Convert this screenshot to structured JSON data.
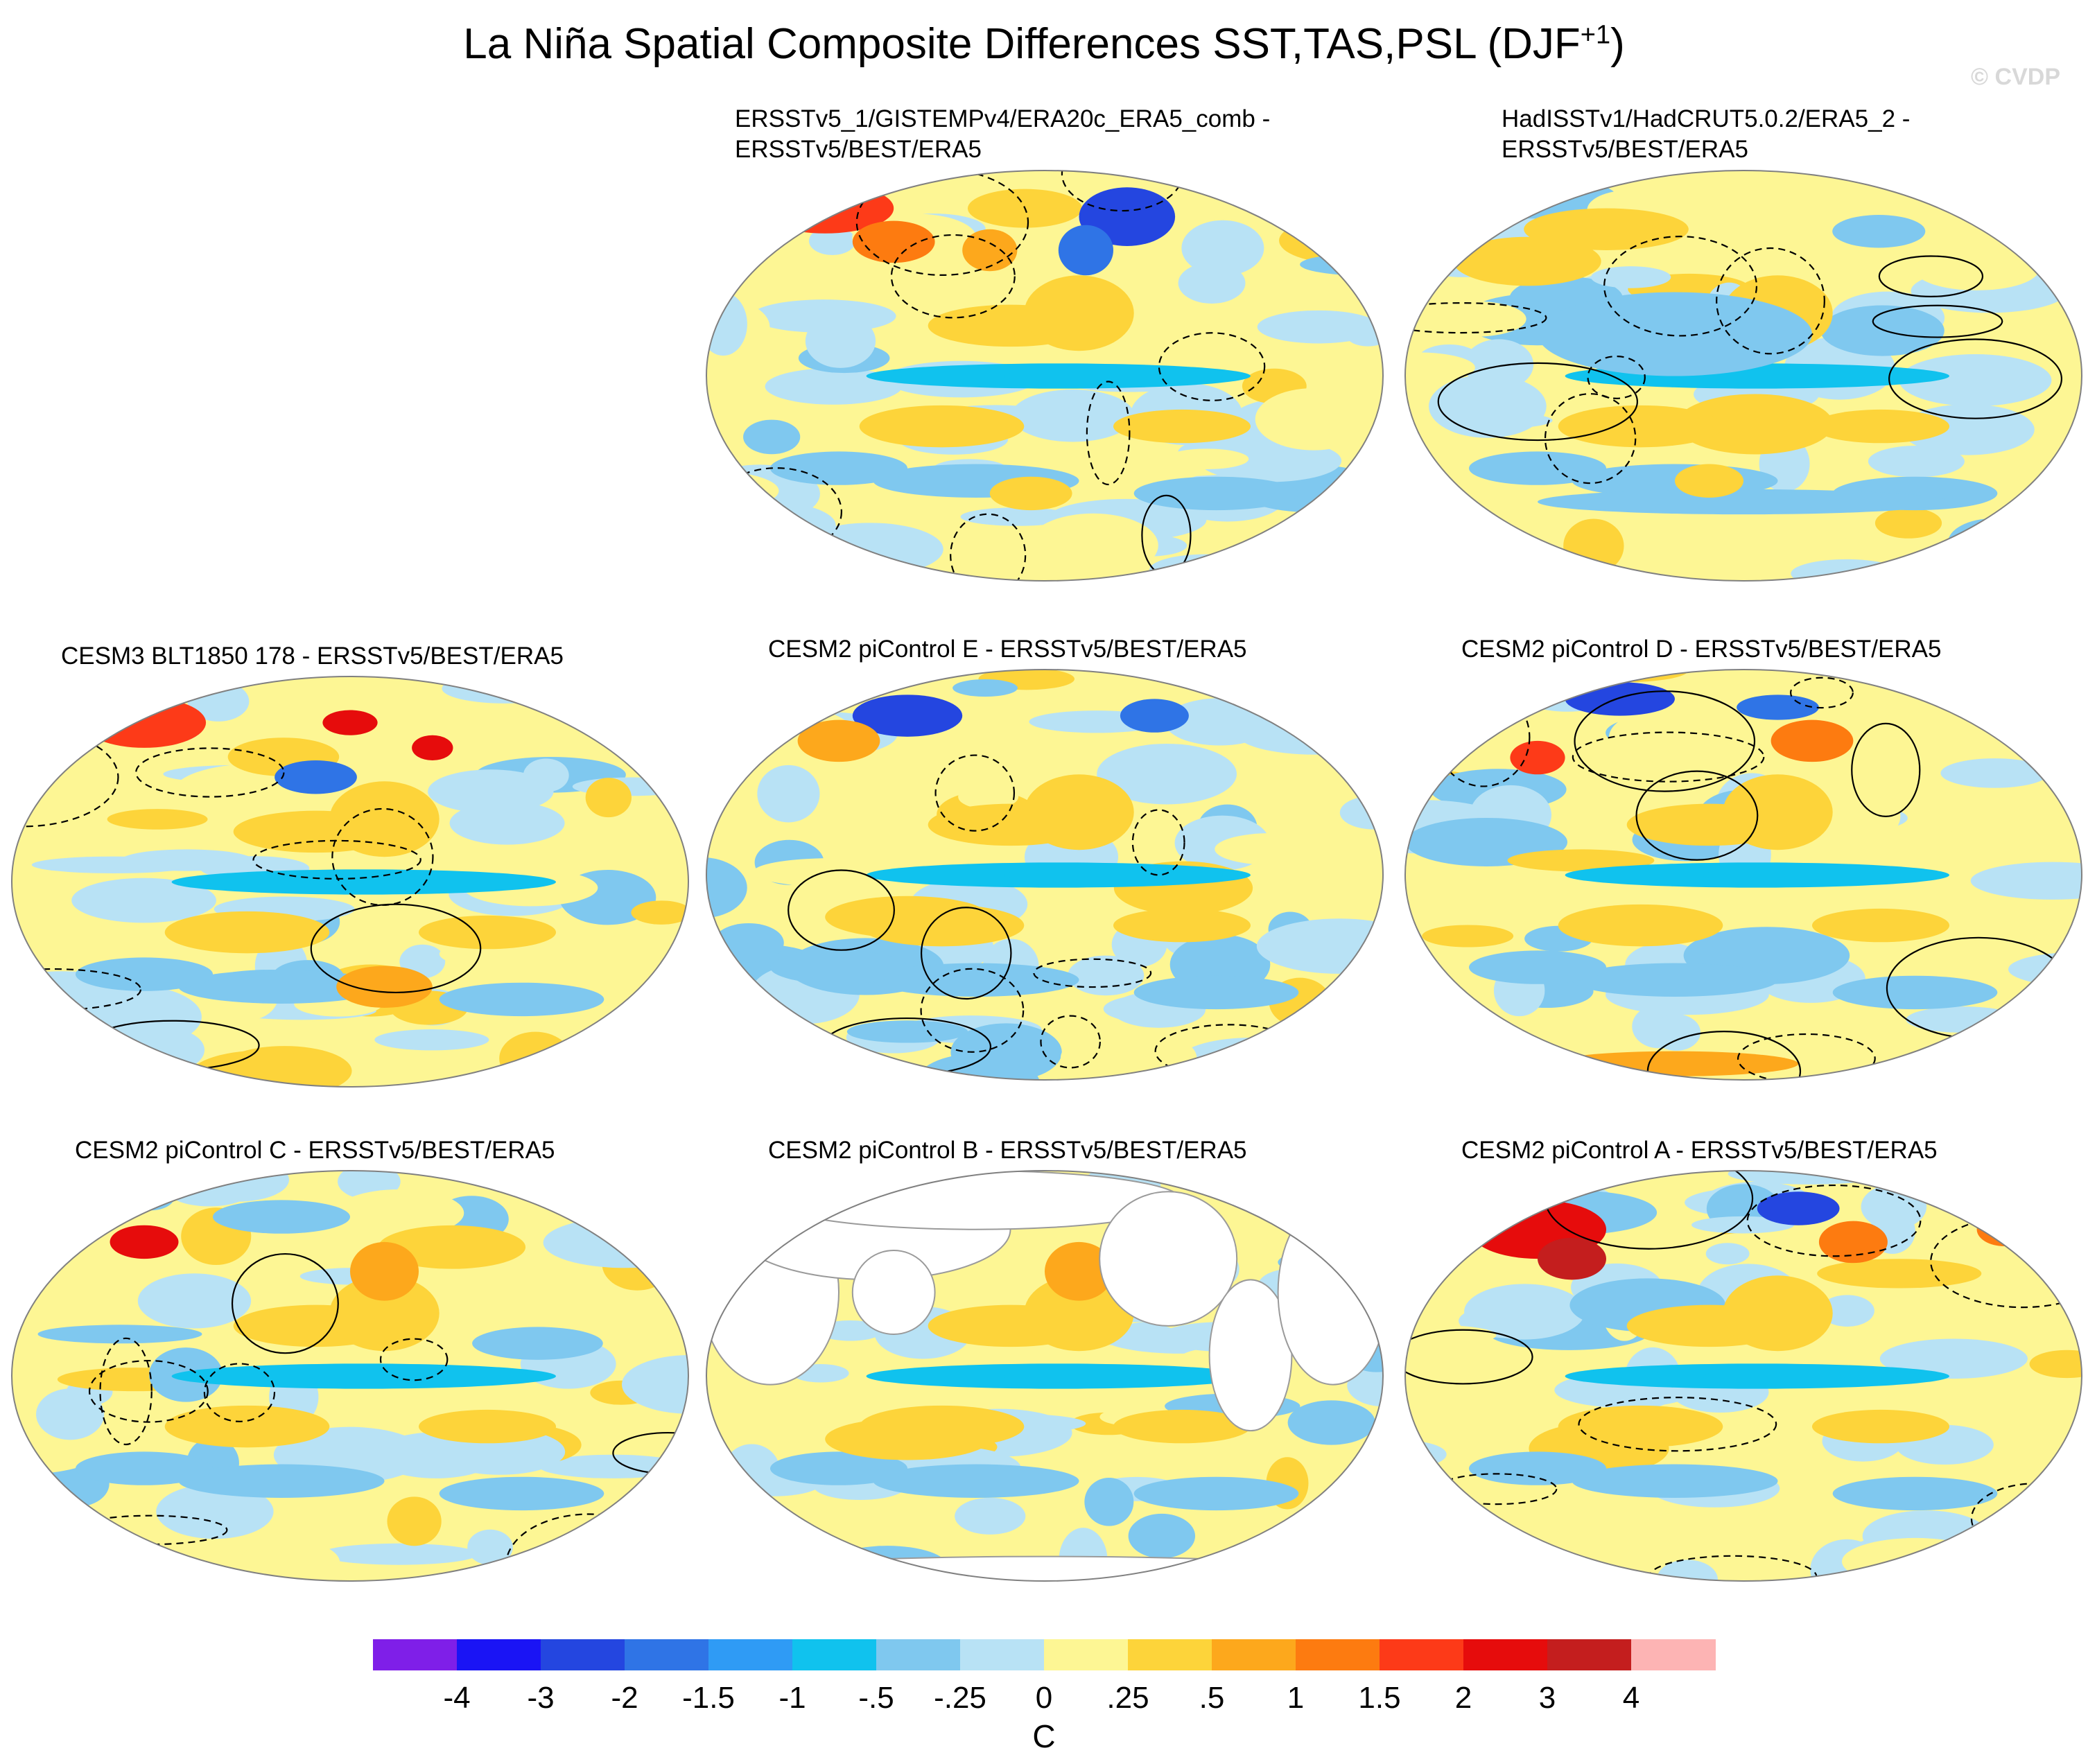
{
  "figure": {
    "title_main": "La Niña Spatial Composite Differences SST,TAS,PSL (DJF",
    "title_sup": "+1",
    "title_end": ")",
    "watermark": "© CVDP"
  },
  "panels": [
    {
      "id": "p1",
      "line1": "ERSSTv5_1/GISTEMPv4/ERA20c_ERA5_comb -",
      "line2": "ERSSTv5/BEST/ERA5",
      "land_masked": false
    },
    {
      "id": "p2",
      "line1": "HadISSTv1/HadCRUT5.0.2/ERA5_2 -",
      "line2": "ERSSTv5/BEST/ERA5",
      "land_masked": false
    },
    {
      "id": "p3",
      "line1": "CESM3 BLT1850 178 - ERSSTv5/BEST/ERA5",
      "line2": "",
      "land_masked": false
    },
    {
      "id": "p4",
      "line1": "CESM2 piControl E - ERSSTv5/BEST/ERA5",
      "line2": "",
      "land_masked": false
    },
    {
      "id": "p5",
      "line1": "CESM2 piControl D - ERSSTv5/BEST/ERA5",
      "line2": "",
      "land_masked": false
    },
    {
      "id": "p6",
      "line1": "CESM2 piControl C - ERSSTv5/BEST/ERA5",
      "line2": "",
      "land_masked": false
    },
    {
      "id": "p7",
      "line1": "CESM2 piControl B - ERSSTv5/BEST/ERA5",
      "line2": "",
      "land_masked": true
    },
    {
      "id": "p8",
      "line1": "CESM2 piControl A - ERSSTv5/BEST/ERA5",
      "line2": "",
      "land_masked": false
    }
  ],
  "colorbar": {
    "units": "C",
    "labels": [
      "-4",
      "-3",
      "-2",
      "-1.5",
      "-1",
      "-.5",
      "-.25",
      "0",
      ".25",
      ".5",
      "1",
      "1.5",
      "2",
      "3",
      "4"
    ],
    "colors": [
      "#7f1fe8",
      "#1a14f5",
      "#2446e0",
      "#2f74e6",
      "#2f9bf5",
      "#10c2ee",
      "#7fc8ef",
      "#b8e2f5",
      "#fdf694",
      "#fdd43a",
      "#fda81c",
      "#fd7b10",
      "#fd3a18",
      "#e60c0c",
      "#c41e1e",
      "#fdb4b4"
    ]
  },
  "colors": {
    "land_contour": "#9a9a9a",
    "psl_contour": "#000000"
  }
}
